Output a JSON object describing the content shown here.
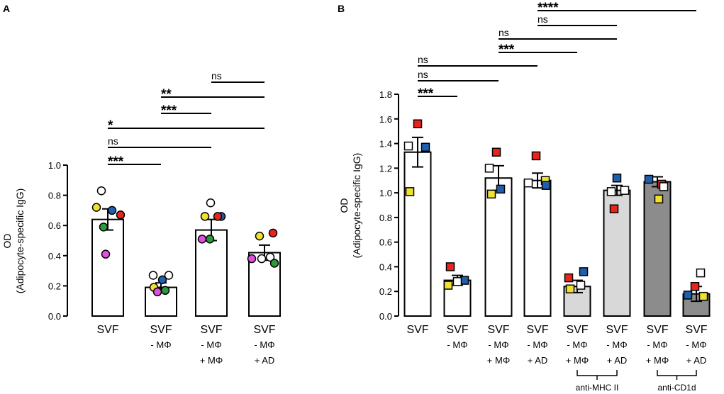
{
  "chart_data": [
    {
      "panel": "A",
      "type": "bar",
      "ylabel": "OD",
      "ylabel2": "(Adipocyte-specific IgG)",
      "ylim": [
        0,
        1.0
      ],
      "yticks": [
        "0.0",
        "0.2",
        "0.4",
        "0.6",
        "0.8",
        "1.0"
      ],
      "tick_values": [
        0,
        0.2,
        0.4,
        0.6,
        0.8,
        1.0
      ],
      "categories": [
        [
          "SVF"
        ],
        [
          "SVF",
          "- MΦ"
        ],
        [
          "SVF",
          "- MΦ",
          "+ MΦ"
        ],
        [
          "SVF",
          "- MΦ",
          "+ AD"
        ]
      ],
      "values": [
        0.64,
        0.19,
        0.57,
        0.42
      ],
      "errors": [
        0.07,
        0.03,
        0.07,
        0.05
      ],
      "bar_colors": [
        "#ffffff",
        "#ffffff",
        "#ffffff",
        "#ffffff"
      ],
      "marker": "circle",
      "points": [
        [
          {
            "y": 0.83,
            "c": "#ffffff"
          },
          {
            "y": 0.72,
            "c": "#f0e030"
          },
          {
            "y": 0.7,
            "c": "#1f5fae"
          },
          {
            "y": 0.67,
            "c": "#e8251c"
          },
          {
            "y": 0.59,
            "c": "#2a9a3a"
          },
          {
            "y": 0.41,
            "c": "#e050e0"
          }
        ],
        [
          {
            "y": 0.27,
            "c": "#ffffff"
          },
          {
            "y": 0.27,
            "c": "#ffffff"
          },
          {
            "y": 0.24,
            "c": "#1f5fae"
          },
          {
            "y": 0.19,
            "c": "#f0e030"
          },
          {
            "y": 0.17,
            "c": "#2a9a3a"
          },
          {
            "y": 0.16,
            "c": "#e050e0"
          }
        ],
        [
          {
            "y": 0.75,
            "c": "#ffffff"
          },
          {
            "y": 0.66,
            "c": "#f0e030"
          },
          {
            "y": 0.66,
            "c": "#1f5fae"
          },
          {
            "y": 0.66,
            "c": "#e8251c"
          },
          {
            "y": 0.51,
            "c": "#2a9a3a"
          },
          {
            "y": 0.51,
            "c": "#e050e0"
          }
        ],
        [
          {
            "y": 0.53,
            "c": "#f0e030"
          },
          {
            "y": 0.55,
            "c": "#e8251c"
          },
          {
            "y": 0.38,
            "c": "#e050e0"
          },
          {
            "y": 0.38,
            "c": "#ffffff"
          },
          {
            "y": 0.39,
            "c": "#ffffff"
          },
          {
            "y": 0.35,
            "c": "#2a9a3a"
          }
        ]
      ],
      "comparisons": [
        {
          "from": 0,
          "to": 1,
          "label": "***"
        },
        {
          "from": 0,
          "to": 2,
          "label": "ns"
        },
        {
          "from": 0,
          "to": 3,
          "label": "*"
        },
        {
          "from": 1,
          "to": 2,
          "label": "***"
        },
        {
          "from": 1,
          "to": 3,
          "label": "**"
        },
        {
          "from": 2,
          "to": 3,
          "label": "ns"
        }
      ],
      "brackets": []
    },
    {
      "panel": "B",
      "type": "bar",
      "ylabel": "OD",
      "ylabel2": "(Adipocyte-specific IgG)",
      "ylim": [
        0,
        1.8
      ],
      "yticks": [
        "0.0",
        "0.2",
        "0.4",
        "0.6",
        "0.8",
        "1.0",
        "1.2",
        "1.4",
        "1.6",
        "1.8"
      ],
      "tick_values": [
        0,
        0.2,
        0.4,
        0.6,
        0.8,
        1.0,
        1.2,
        1.4,
        1.6,
        1.8
      ],
      "categories": [
        [
          "SVF"
        ],
        [
          "SVF",
          "- MΦ"
        ],
        [
          "SVF",
          "- MΦ",
          "+ MΦ"
        ],
        [
          "SVF",
          "- MΦ",
          "+ AD"
        ],
        [
          "SVF",
          "- MΦ",
          "+ MΦ"
        ],
        [
          "SVF",
          "- MΦ",
          "+ AD"
        ],
        [
          "SVF",
          "- MΦ",
          "+ MΦ"
        ],
        [
          "SVF",
          "- MΦ",
          "+ AD"
        ]
      ],
      "values": [
        1.33,
        0.29,
        1.12,
        1.1,
        0.24,
        1.02,
        1.09,
        0.18
      ],
      "errors": [
        0.12,
        0.04,
        0.1,
        0.06,
        0.05,
        0.04,
        0.04,
        0.06
      ],
      "bar_colors": [
        "#ffffff",
        "#ffffff",
        "#ffffff",
        "#ffffff",
        "#d8d8d8",
        "#d8d8d8",
        "#8c8c8c",
        "#8c8c8c"
      ],
      "marker": "square",
      "points": [
        [
          {
            "y": 1.56,
            "c": "#e8251c"
          },
          {
            "y": 1.38,
            "c": "#ffffff"
          },
          {
            "y": 1.37,
            "c": "#1f5fae"
          },
          {
            "y": 1.01,
            "c": "#f0e030"
          }
        ],
        [
          {
            "y": 0.4,
            "c": "#e8251c"
          },
          {
            "y": 0.29,
            "c": "#1f5fae"
          },
          {
            "y": 0.28,
            "c": "#ffffff"
          },
          {
            "y": 0.25,
            "c": "#f0e030"
          }
        ],
        [
          {
            "y": 1.33,
            "c": "#e8251c"
          },
          {
            "y": 1.2,
            "c": "#ffffff"
          },
          {
            "y": 1.03,
            "c": "#1f5fae"
          },
          {
            "y": 0.99,
            "c": "#f0e030"
          }
        ],
        [
          {
            "y": 1.3,
            "c": "#e8251c"
          },
          {
            "y": 1.08,
            "c": "#ffffff"
          },
          {
            "y": 1.1,
            "c": "#f0e030"
          },
          {
            "y": 1.06,
            "c": "#1f5fae"
          }
        ],
        [
          {
            "y": 0.36,
            "c": "#1f5fae"
          },
          {
            "y": 0.31,
            "c": "#e8251c"
          },
          {
            "y": 0.22,
            "c": "#f0e030"
          },
          {
            "y": 0.25,
            "c": "#ffffff"
          }
        ],
        [
          {
            "y": 1.12,
            "c": "#1f5fae"
          },
          {
            "y": 1.02,
            "c": "#ffffff"
          },
          {
            "y": 1.01,
            "c": "#ffffff"
          },
          {
            "y": 0.87,
            "c": "#e8251c"
          }
        ],
        [
          {
            "y": 1.11,
            "c": "#1f5fae"
          },
          {
            "y": 1.07,
            "c": "#e8251c"
          },
          {
            "y": 1.05,
            "c": "#ffffff"
          },
          {
            "y": 0.95,
            "c": "#f0e030"
          }
        ],
        [
          {
            "y": 0.35,
            "c": "#ffffff"
          },
          {
            "y": 0.24,
            "c": "#e8251c"
          },
          {
            "y": 0.17,
            "c": "#1f5fae"
          },
          {
            "y": 0.16,
            "c": "#f0e030"
          }
        ]
      ],
      "comparisons": [
        {
          "from": 0,
          "to": 1,
          "label": "***"
        },
        {
          "from": 0,
          "to": 2,
          "label": "ns"
        },
        {
          "from": 0,
          "to": 3,
          "label": "ns"
        },
        {
          "from": 2,
          "to": 4,
          "label": "***"
        },
        {
          "from": 2,
          "to": 5,
          "label": "ns"
        },
        {
          "from": 3,
          "to": 5,
          "label": "ns"
        },
        {
          "from": 3,
          "to": 7,
          "label": "****"
        }
      ],
      "brackets": [
        {
          "from": 4,
          "to": 5,
          "label": "anti-MHC II"
        },
        {
          "from": 6,
          "to": 7,
          "label": "anti-CD1d"
        }
      ]
    }
  ]
}
